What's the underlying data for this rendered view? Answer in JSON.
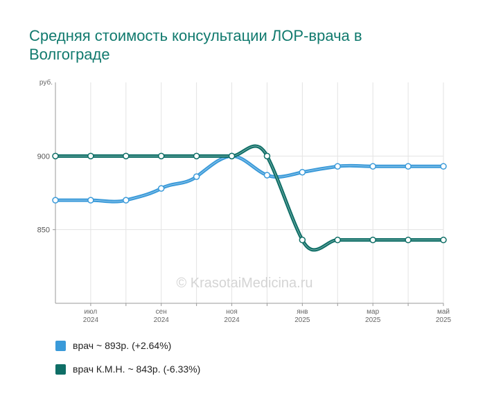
{
  "title": "Средняя стоимость консультации ЛОР-врача в Волгограде",
  "watermark": "© KrasotaiMedicina.ru",
  "chart_data": {
    "type": "line",
    "y_unit": "руб.",
    "yticks": [
      850,
      900
    ],
    "ylim": [
      800,
      950
    ],
    "x_months": [
      "2024-06",
      "2024-07",
      "2024-08",
      "2024-09",
      "2024-10",
      "2024-11",
      "2024-12",
      "2025-01",
      "2025-02",
      "2025-03",
      "2025-04",
      "2025-05"
    ],
    "x_ticks": [
      {
        "month": "2024-07",
        "label1": "июл",
        "label2": "2024"
      },
      {
        "month": "2024-09",
        "label1": "сен",
        "label2": "2024"
      },
      {
        "month": "2024-11",
        "label1": "ноя",
        "label2": "2024"
      },
      {
        "month": "2025-01",
        "label1": "янв",
        "label2": "2025"
      },
      {
        "month": "2025-03",
        "label1": "мар",
        "label2": "2025"
      },
      {
        "month": "2025-05",
        "label1": "май",
        "label2": "2025"
      }
    ],
    "grid": true,
    "legend_position": "bottom",
    "series": [
      {
        "name": "врач",
        "color": "#3a9ad9",
        "values": [
          870,
          870,
          870,
          878,
          886,
          900,
          887,
          889,
          893,
          893,
          893,
          893
        ]
      },
      {
        "name": "врач К.М.Н.",
        "color": "#0e6e66",
        "values": [
          900,
          900,
          900,
          900,
          900,
          900,
          900,
          843,
          843,
          843,
          843,
          843
        ]
      }
    ]
  },
  "legend": [
    {
      "name": "врач",
      "value_text": "~ 893р.",
      "change_text": "(+2.64%)",
      "color": "#3a9ad9"
    },
    {
      "name": "врач К.М.Н.",
      "value_text": "~ 843р.",
      "change_text": "(-6.33%)",
      "color": "#0e6e66"
    }
  ]
}
